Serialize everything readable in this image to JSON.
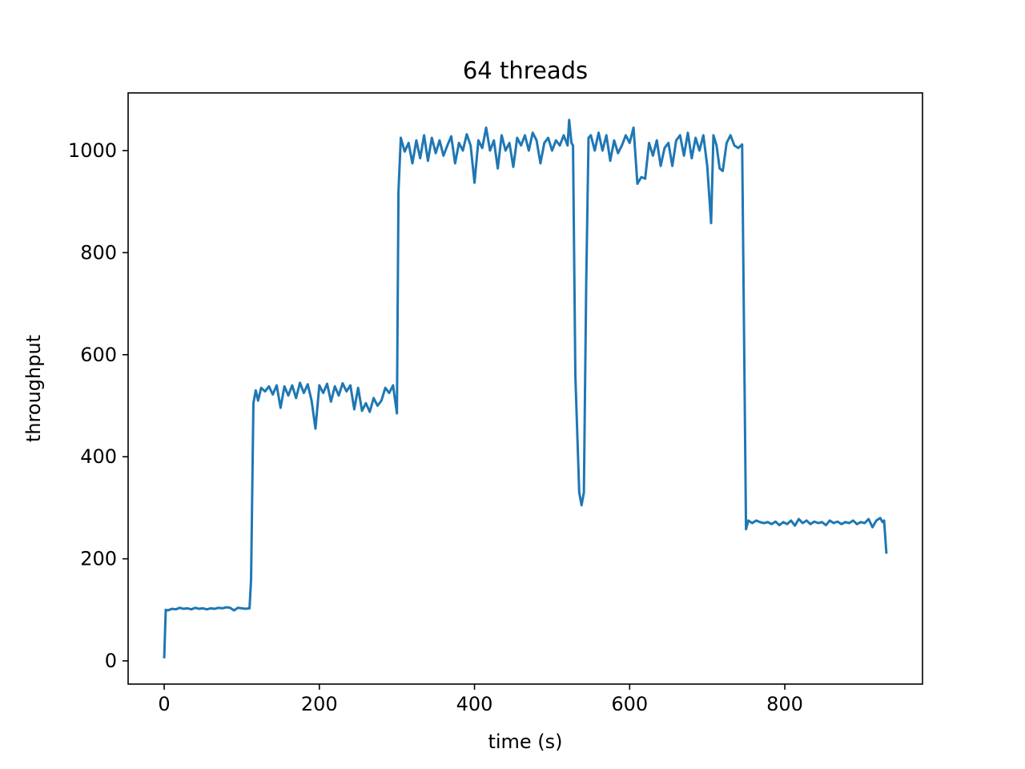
{
  "chart_data": {
    "type": "line",
    "title": "64 threads",
    "x_label": "time (s)",
    "y_label": "throughput",
    "xlim": [
      -46.5,
      977.5
    ],
    "ylim": [
      -45.5,
      1113
    ],
    "xticks": [
      0,
      200,
      400,
      600,
      800
    ],
    "yticks": [
      0,
      200,
      400,
      600,
      800,
      1000
    ],
    "series": [
      {
        "color": "#1f77b4",
        "x": [
          0,
          2,
          5,
          10,
          15,
          20,
          25,
          30,
          35,
          40,
          45,
          50,
          55,
          60,
          65,
          70,
          75,
          80,
          85,
          90,
          95,
          100,
          105,
          110,
          112,
          115,
          118,
          121,
          125,
          130,
          135,
          140,
          145,
          150,
          155,
          160,
          165,
          170,
          175,
          180,
          185,
          190,
          195,
          200,
          205,
          210,
          215,
          220,
          225,
          230,
          235,
          240,
          245,
          250,
          255,
          260,
          265,
          270,
          275,
          280,
          285,
          290,
          295,
          300,
          302,
          305,
          310,
          315,
          320,
          325,
          330,
          335,
          340,
          345,
          350,
          355,
          360,
          365,
          370,
          375,
          380,
          385,
          390,
          395,
          400,
          405,
          410,
          415,
          420,
          425,
          430,
          435,
          440,
          445,
          450,
          455,
          460,
          465,
          470,
          475,
          480,
          485,
          490,
          495,
          500,
          505,
          510,
          515,
          520,
          522,
          525,
          527,
          530,
          535,
          538,
          541,
          544,
          547,
          550,
          555,
          560,
          565,
          570,
          575,
          580,
          585,
          590,
          595,
          600,
          605,
          610,
          615,
          620,
          625,
          630,
          635,
          640,
          645,
          650,
          655,
          660,
          665,
          670,
          675,
          680,
          685,
          690,
          695,
          700,
          705,
          708,
          712,
          716,
          720,
          725,
          730,
          735,
          740,
          745,
          750,
          753,
          758,
          763,
          768,
          773,
          778,
          783,
          788,
          793,
          798,
          803,
          808,
          813,
          818,
          823,
          828,
          833,
          838,
          843,
          848,
          853,
          858,
          863,
          868,
          873,
          878,
          883,
          888,
          893,
          898,
          903,
          908,
          913,
          918,
          923,
          926,
          928,
          931
        ],
        "values": [
          5,
          100,
          99,
          102,
          101,
          104,
          102,
          103,
          101,
          104,
          102,
          103,
          101,
          103,
          102,
          104,
          103,
          105,
          104,
          99,
          104,
          103,
          102,
          103,
          160,
          505,
          530,
          510,
          535,
          528,
          538,
          522,
          540,
          496,
          538,
          520,
          540,
          515,
          545,
          525,
          542,
          510,
          455,
          540,
          525,
          543,
          508,
          538,
          520,
          544,
          528,
          540,
          493,
          535,
          490,
          505,
          488,
          515,
          500,
          510,
          535,
          525,
          540,
          485,
          920,
          1025,
          998,
          1015,
          975,
          1020,
          985,
          1030,
          980,
          1025,
          995,
          1020,
          990,
          1010,
          1028,
          975,
          1015,
          1000,
          1032,
          1010,
          937,
          1020,
          1005,
          1045,
          1000,
          1020,
          965,
          1030,
          1000,
          1015,
          968,
          1025,
          1010,
          1030,
          1000,
          1035,
          1020,
          975,
          1015,
          1025,
          1000,
          1020,
          1010,
          1030,
          1010,
          1060,
          1015,
          1010,
          560,
          330,
          305,
          330,
          740,
          1025,
          1030,
          1000,
          1035,
          1000,
          1030,
          980,
          1020,
          995,
          1010,
          1030,
          1015,
          1045,
          935,
          948,
          945,
          1015,
          990,
          1020,
          970,
          1005,
          1015,
          970,
          1020,
          1030,
          990,
          1035,
          985,
          1025,
          1000,
          1030,
          970,
          858,
          1030,
          1010,
          965,
          960,
          1015,
          1030,
          1010,
          1005,
          1012,
          258,
          275,
          270,
          275,
          272,
          270,
          272,
          268,
          273,
          266,
          272,
          268,
          275,
          265,
          278,
          270,
          275,
          268,
          273,
          270,
          272,
          266,
          275,
          270,
          273,
          268,
          272,
          270,
          275,
          268,
          272,
          270,
          278,
          262,
          275,
          280,
          272,
          275,
          210
        ]
      }
    ]
  }
}
